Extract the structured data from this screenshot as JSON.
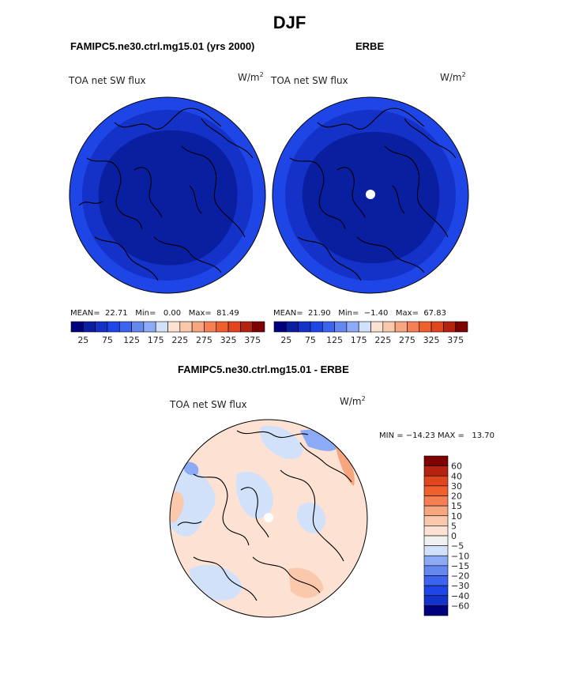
{
  "figure": {
    "title": "DJF",
    "panels": [
      {
        "case_title": "FAMIPC5.ne30.ctrl.mg15.01 (yrs 2000)",
        "variable": "TOA net SW flux",
        "units": "W/m",
        "units_exp": "2",
        "stats": {
          "mean_label": "MEAN=",
          "mean": "22.71",
          "min_label": "Min=",
          "min": "0.00",
          "max_label": "Max=",
          "max": "81.49"
        },
        "pole_marker": false
      },
      {
        "case_title": "ERBE",
        "variable": "TOA net SW flux",
        "units": "W/m",
        "units_exp": "2",
        "stats": {
          "mean_label": "MEAN=",
          "mean": "21.90",
          "min_label": "Min=",
          "min": "−1.40",
          "max_label": "Max=",
          "max": "67.83"
        },
        "pole_marker": true
      }
    ],
    "abs_colorbar": {
      "tick_labels": [
        "25",
        "75",
        "125",
        "175",
        "225",
        "275",
        "325",
        "375"
      ],
      "colors": [
        "#00007f",
        "#0a1fa0",
        "#1431c8",
        "#1e46e6",
        "#3c64f0",
        "#6487f0",
        "#8caaf5",
        "#d2e1fa",
        "#fde1d2",
        "#fac8aa",
        "#f8a680",
        "#f68055",
        "#f0602d",
        "#e1461e",
        "#b4230f",
        "#7f0000"
      ]
    },
    "diff_panel": {
      "title": "FAMIPC5.ne30.ctrl.mg15.01 - ERBE",
      "variable": "TOA net SW flux",
      "units": "W/m",
      "units_exp": "2",
      "minmax_text": "MIN = −14.23 MAX =   13.70",
      "colorbar": {
        "tick_labels": [
          "60",
          "40",
          "30",
          "20",
          "15",
          "10",
          "5",
          "0",
          "−5",
          "−10",
          "−15",
          "−20",
          "−30",
          "−40",
          "−60"
        ],
        "colors": [
          "#7f0000",
          "#b4230f",
          "#e1461e",
          "#f0602d",
          "#f68055",
          "#f8a680",
          "#fac8aa",
          "#fde1d2",
          "#f0f0f0",
          "#d2e1fa",
          "#8caaf5",
          "#6487f0",
          "#3c64f0",
          "#1e46e6",
          "#1431c8",
          "#00007f"
        ]
      }
    },
    "map_colors": {
      "outer_ring": "#1e46e6",
      "middle_ring": "#1431c8",
      "inner_core": "#0a1fa0",
      "diff_base": "#fde1d2",
      "diff_neg": "#d2e1fa",
      "diff_neg_strong": "#8caaf5",
      "diff_pos": "#fac8aa",
      "diff_pos_strong": "#f8a680"
    }
  }
}
